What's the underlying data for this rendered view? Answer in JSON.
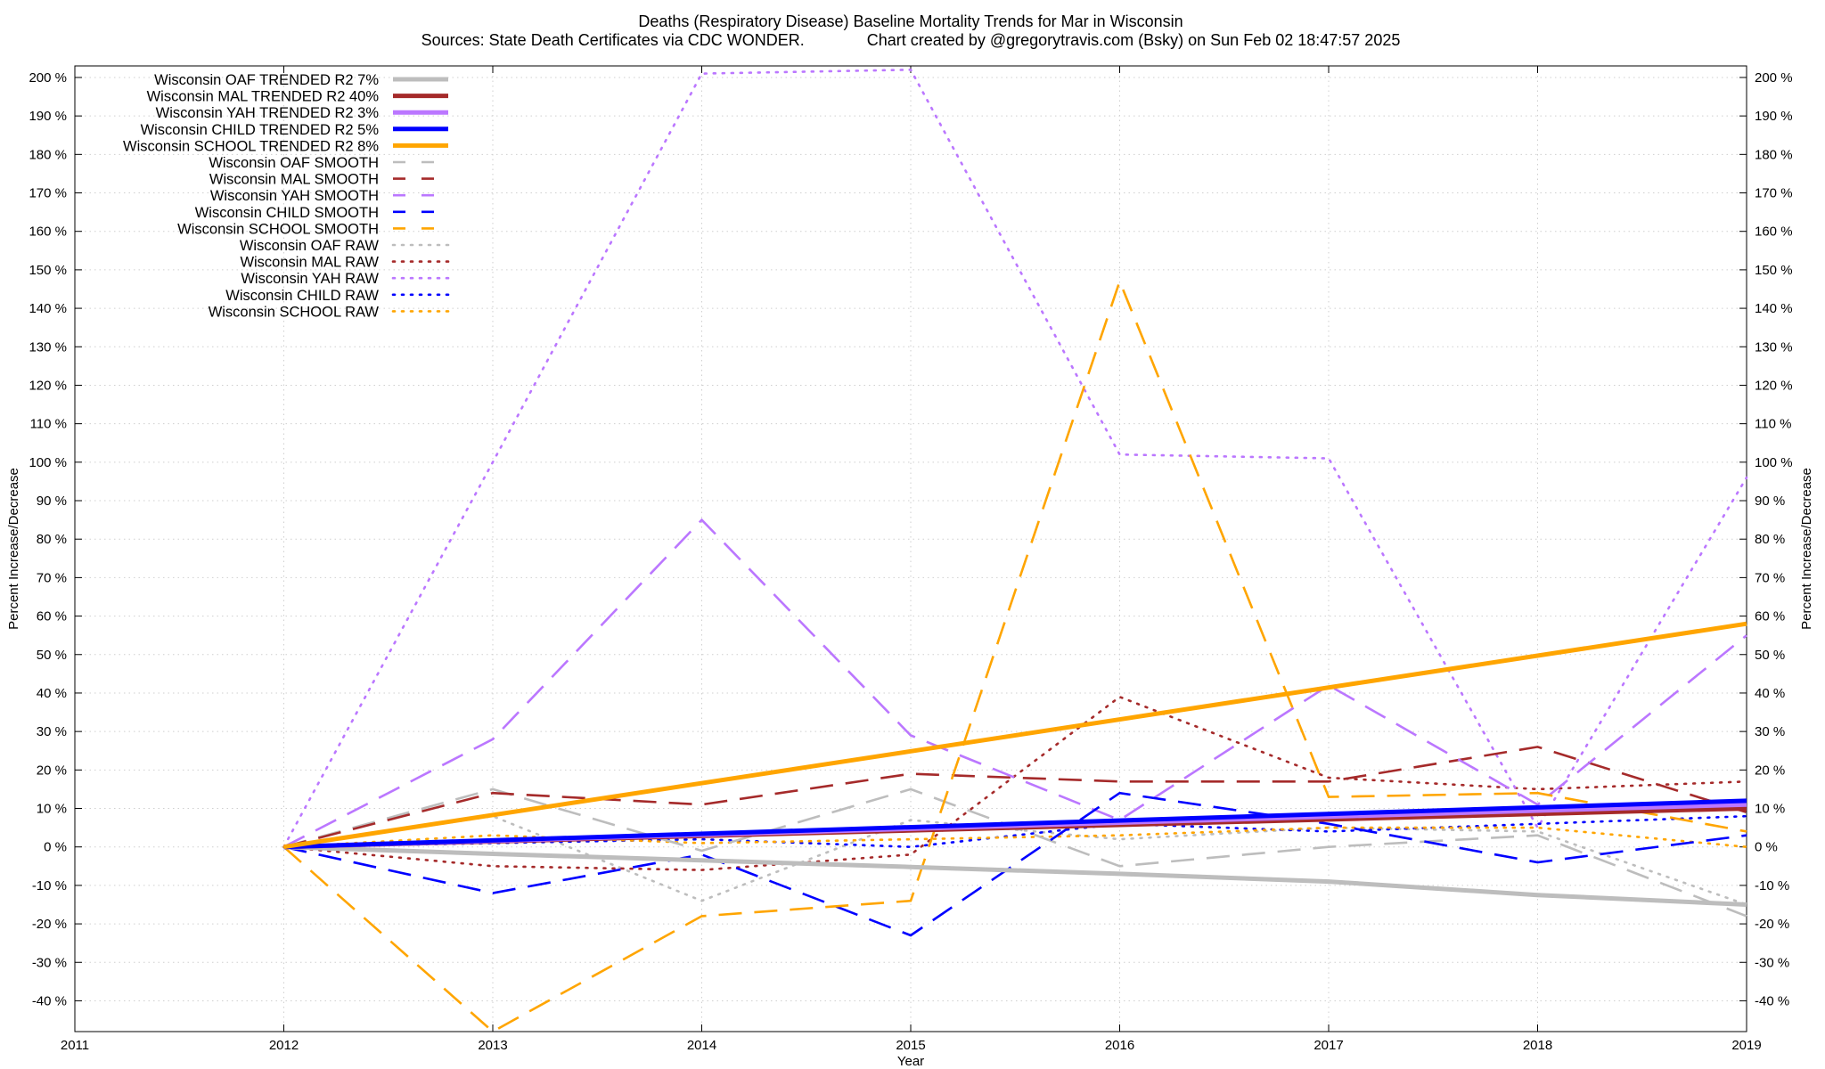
{
  "chart_data": {
    "type": "line",
    "title_line1": "Deaths (Respiratory Disease)  Baseline Mortality Trends for Mar in Wisconsin",
    "title_line2": "Sources: State Death Certificates via CDC WONDER.              Chart created by @gregorytravis.com (Bsky) on Sun Feb 02 18:47:57 2025",
    "xlabel": "Year",
    "ylabel": "Percent Increase/Decrease",
    "xlim": [
      2011,
      2019
    ],
    "ylim": [
      -48,
      203
    ],
    "x_ticks": [
      2011,
      2012,
      2013,
      2014,
      2015,
      2016,
      2017,
      2018,
      2019
    ],
    "y_ticks": [
      -40,
      -30,
      -20,
      -10,
      0,
      10,
      20,
      30,
      40,
      50,
      60,
      70,
      80,
      90,
      100,
      110,
      120,
      130,
      140,
      150,
      160,
      170,
      180,
      190,
      200
    ],
    "y_tick_suffix": " %",
    "grid": true,
    "legend_position": "top-left",
    "series": [
      {
        "name": "Wisconsin OAF TRENDED R2",
        "r2": "7%",
        "style": "solid",
        "color": "#bdbdbd",
        "x": [
          2012,
          2013,
          2014,
          2015,
          2016,
          2017,
          2018,
          2019
        ],
        "y": [
          0,
          -1.8,
          -3.5,
          -5.2,
          -7.0,
          -9.0,
          -12.5,
          -15.0
        ]
      },
      {
        "name": "Wisconsin MAL TRENDED R2",
        "r2": "40%",
        "style": "solid",
        "color": "#a52a2a",
        "x": [
          2012,
          2019
        ],
        "y": [
          0,
          10.0
        ]
      },
      {
        "name": "Wisconsin YAH TRENDED R2",
        "r2": "3%",
        "style": "solid",
        "color": "#bb77ff",
        "x": [
          2012,
          2019
        ],
        "y": [
          0,
          11.0
        ]
      },
      {
        "name": "Wisconsin CHILD TRENDED R2",
        "r2": "5%",
        "style": "solid",
        "color": "#0000ff",
        "x": [
          2012,
          2019
        ],
        "y": [
          0,
          12.0
        ]
      },
      {
        "name": "Wisconsin SCHOOL TRENDED R2",
        "r2": "8%",
        "style": "solid",
        "color": "#ffa500",
        "x": [
          2012,
          2019
        ],
        "y": [
          0,
          58.0
        ]
      },
      {
        "name": "Wisconsin OAF SMOOTH",
        "r2": "",
        "style": "dashed",
        "color": "#bdbdbd",
        "x": [
          2012,
          2013,
          2014,
          2015,
          2016,
          2017,
          2018,
          2019
        ],
        "y": [
          0,
          15.0,
          -1.0,
          15.0,
          -5.0,
          0.0,
          3.0,
          -18.0
        ]
      },
      {
        "name": "Wisconsin MAL SMOOTH",
        "r2": "",
        "style": "dashed",
        "color": "#a52a2a",
        "x": [
          2012,
          2013,
          2014,
          2015,
          2016,
          2017,
          2018,
          2019
        ],
        "y": [
          0,
          14.0,
          11.0,
          19.0,
          17.0,
          17.0,
          26.0,
          9.0
        ]
      },
      {
        "name": "Wisconsin YAH SMOOTH",
        "r2": "",
        "style": "dashed",
        "color": "#bb77ff",
        "x": [
          2012,
          2013,
          2014,
          2015,
          2016,
          2017,
          2018,
          2019
        ],
        "y": [
          0,
          28.0,
          85.0,
          29.0,
          7.0,
          42.0,
          11.0,
          55.0
        ]
      },
      {
        "name": "Wisconsin CHILD SMOOTH",
        "r2": "",
        "style": "dashed",
        "color": "#0000ff",
        "x": [
          2012,
          2013,
          2014,
          2015,
          2016,
          2017,
          2018,
          2019
        ],
        "y": [
          0,
          -12.0,
          -2.0,
          -23.0,
          14.0,
          6.0,
          -4.0,
          3.0
        ]
      },
      {
        "name": "Wisconsin SCHOOL SMOOTH",
        "r2": "",
        "style": "dashed",
        "color": "#ffa500",
        "x": [
          2012,
          2013,
          2014,
          2015,
          2016,
          2017,
          2018,
          2019
        ],
        "y": [
          0,
          -48.0,
          -18.0,
          -14.0,
          147.0,
          13.0,
          14.0,
          4.0
        ]
      },
      {
        "name": "Wisconsin OAF RAW",
        "r2": "",
        "style": "dotted",
        "color": "#bdbdbd",
        "x": [
          2012,
          2013,
          2014,
          2015,
          2016,
          2017,
          2018,
          2019
        ],
        "y": [
          0,
          8.0,
          -14.0,
          7.0,
          2.0,
          5.0,
          4.0,
          -15.0
        ]
      },
      {
        "name": "Wisconsin MAL RAW",
        "r2": "",
        "style": "dotted",
        "color": "#a52a2a",
        "x": [
          2012,
          2013,
          2014,
          2015,
          2016,
          2017,
          2018,
          2019
        ],
        "y": [
          0,
          -5.0,
          -6.0,
          -2.0,
          39.0,
          18.0,
          15.0,
          17.0
        ]
      },
      {
        "name": "Wisconsin YAH RAW",
        "r2": "",
        "style": "dotted",
        "color": "#bb77ff",
        "x": [
          2012,
          2013,
          2014,
          2015,
          2016,
          2017,
          2018,
          2019
        ],
        "y": [
          0,
          100.0,
          201.0,
          202.0,
          102.0,
          101.0,
          5.0,
          96.0
        ]
      },
      {
        "name": "Wisconsin CHILD RAW",
        "r2": "",
        "style": "dotted",
        "color": "#0000ff",
        "x": [
          2012,
          2013,
          2014,
          2015,
          2016,
          2017,
          2018,
          2019
        ],
        "y": [
          0,
          1.0,
          2.0,
          0.0,
          6.0,
          4.0,
          6.0,
          8.0
        ]
      },
      {
        "name": "Wisconsin SCHOOL RAW",
        "r2": "",
        "style": "dotted",
        "color": "#ffa500",
        "x": [
          2012,
          2013,
          2014,
          2015,
          2016,
          2017,
          2018,
          2019
        ],
        "y": [
          0,
          3.0,
          1.0,
          2.0,
          3.0,
          5.0,
          5.0,
          0.0
        ]
      }
    ]
  }
}
